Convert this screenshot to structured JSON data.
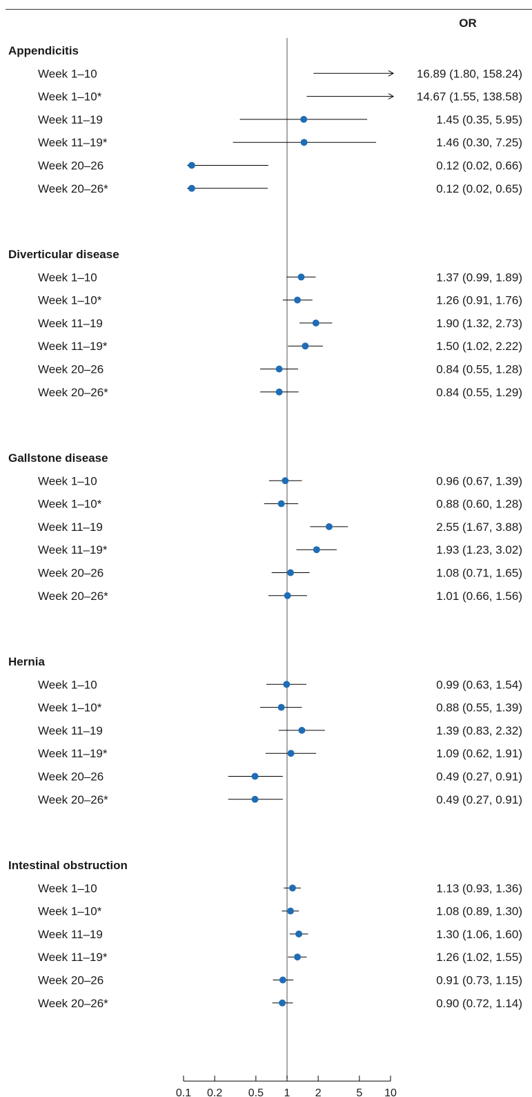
{
  "chart_data": {
    "type": "forest",
    "column_header": "OR",
    "x_scale": "log",
    "xlim": [
      0.1,
      10
    ],
    "reference_line": 1,
    "x_ticks": [
      {
        "value": 0.1,
        "label": "0.1"
      },
      {
        "value": 0.2,
        "label": "0.2"
      },
      {
        "value": 0.5,
        "label": "0.5"
      },
      {
        "value": 1,
        "label": "1"
      },
      {
        "value": 2,
        "label": "2"
      },
      {
        "value": 5,
        "label": "5"
      },
      {
        "value": 10,
        "label": "10"
      }
    ],
    "colors": {
      "point": "#1f6db5",
      "line": "#000000",
      "reference": "#8c8c8c"
    },
    "groups": [
      {
        "name": "Appendicitis",
        "rows": [
          {
            "label": "Week 1–10",
            "or": 16.89,
            "lo": 1.8,
            "hi": 158.24,
            "text": "16.89 (1.80, 158.24)"
          },
          {
            "label": "Week 1–10*",
            "or": 14.67,
            "lo": 1.55,
            "hi": 138.58,
            "text": "14.67 (1.55, 138.58)"
          },
          {
            "label": "Week 11–19",
            "or": 1.45,
            "lo": 0.35,
            "hi": 5.95,
            "text": "1.45 (0.35, 5.95)"
          },
          {
            "label": "Week 11–19*",
            "or": 1.46,
            "lo": 0.3,
            "hi": 7.25,
            "text": "1.46 (0.30, 7.25)"
          },
          {
            "label": "Week 20–26",
            "or": 0.12,
            "lo": 0.02,
            "hi": 0.66,
            "text": "0.12 (0.02, 0.66)"
          },
          {
            "label": "Week 20–26*",
            "or": 0.12,
            "lo": 0.02,
            "hi": 0.65,
            "text": "0.12 (0.02, 0.65)"
          }
        ]
      },
      {
        "name": "Diverticular disease",
        "rows": [
          {
            "label": "Week 1–10",
            "or": 1.37,
            "lo": 0.99,
            "hi": 1.89,
            "text": "1.37 (0.99, 1.89)"
          },
          {
            "label": "Week 1–10*",
            "or": 1.26,
            "lo": 0.91,
            "hi": 1.76,
            "text": "1.26 (0.91, 1.76)"
          },
          {
            "label": "Week 11–19",
            "or": 1.9,
            "lo": 1.32,
            "hi": 2.73,
            "text": "1.90 (1.32, 2.73)"
          },
          {
            "label": "Week 11–19*",
            "or": 1.5,
            "lo": 1.02,
            "hi": 2.22,
            "text": "1.50 (1.02, 2.22)"
          },
          {
            "label": "Week 20–26",
            "or": 0.84,
            "lo": 0.55,
            "hi": 1.28,
            "text": "0.84 (0.55, 1.28)"
          },
          {
            "label": "Week 20–26*",
            "or": 0.84,
            "lo": 0.55,
            "hi": 1.29,
            "text": "0.84 (0.55, 1.29)"
          }
        ]
      },
      {
        "name": "Gallstone disease",
        "rows": [
          {
            "label": "Week 1–10",
            "or": 0.96,
            "lo": 0.67,
            "hi": 1.39,
            "text": "0.96 (0.67, 1.39)"
          },
          {
            "label": "Week 1–10*",
            "or": 0.88,
            "lo": 0.6,
            "hi": 1.28,
            "text": "0.88 (0.60, 1.28)"
          },
          {
            "label": "Week 11–19",
            "or": 2.55,
            "lo": 1.67,
            "hi": 3.88,
            "text": "2.55 (1.67, 3.88)"
          },
          {
            "label": "Week 11–19*",
            "or": 1.93,
            "lo": 1.23,
            "hi": 3.02,
            "text": "1.93 (1.23, 3.02)"
          },
          {
            "label": "Week 20–26",
            "or": 1.08,
            "lo": 0.71,
            "hi": 1.65,
            "text": "1.08 (0.71, 1.65)"
          },
          {
            "label": "Week 20–26*",
            "or": 1.01,
            "lo": 0.66,
            "hi": 1.56,
            "text": "1.01 (0.66, 1.56)"
          }
        ]
      },
      {
        "name": "Hernia",
        "rows": [
          {
            "label": "Week 1–10",
            "or": 0.99,
            "lo": 0.63,
            "hi": 1.54,
            "text": "0.99 (0.63, 1.54)"
          },
          {
            "label": "Week 1–10*",
            "or": 0.88,
            "lo": 0.55,
            "hi": 1.39,
            "text": "0.88 (0.55, 1.39)"
          },
          {
            "label": "Week 11–19",
            "or": 1.39,
            "lo": 0.83,
            "hi": 2.32,
            "text": "1.39 (0.83, 2.32)"
          },
          {
            "label": "Week 11–19*",
            "or": 1.09,
            "lo": 0.62,
            "hi": 1.91,
            "text": "1.09 (0.62, 1.91)"
          },
          {
            "label": "Week 20–26",
            "or": 0.49,
            "lo": 0.27,
            "hi": 0.91,
            "text": "0.49 (0.27, 0.91)"
          },
          {
            "label": "Week 20–26*",
            "or": 0.49,
            "lo": 0.27,
            "hi": 0.91,
            "text": "0.49 (0.27, 0.91)"
          }
        ]
      },
      {
        "name": "Intestinal obstruction",
        "rows": [
          {
            "label": "Week 1–10",
            "or": 1.13,
            "lo": 0.93,
            "hi": 1.36,
            "text": "1.13 (0.93, 1.36)"
          },
          {
            "label": "Week 1–10*",
            "or": 1.08,
            "lo": 0.89,
            "hi": 1.3,
            "text": "1.08 (0.89, 1.30)"
          },
          {
            "label": "Week 11–19",
            "or": 1.3,
            "lo": 1.06,
            "hi": 1.6,
            "text": "1.30 (1.06, 1.60)"
          },
          {
            "label": "Week 11–19*",
            "or": 1.26,
            "lo": 1.02,
            "hi": 1.55,
            "text": "1.26 (1.02, 1.55)"
          },
          {
            "label": "Week 20–26",
            "or": 0.91,
            "lo": 0.73,
            "hi": 1.15,
            "text": "0.91 (0.73, 1.15)"
          },
          {
            "label": "Week 20–26*",
            "or": 0.9,
            "lo": 0.72,
            "hi": 1.14,
            "text": "0.90 (0.72, 1.14)"
          }
        ]
      }
    ]
  }
}
